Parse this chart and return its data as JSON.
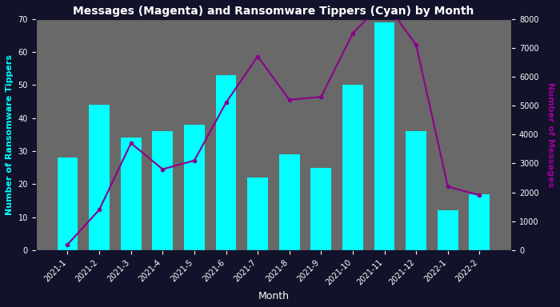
{
  "months": [
    "2021-1",
    "2021-2",
    "2021-3",
    "2021-4",
    "2021-5",
    "2021-6",
    "2021-7",
    "2021-8",
    "2021-9",
    "2021-10",
    "2021-11",
    "2021-12",
    "2022-1",
    "2022-2"
  ],
  "tippers": [
    28,
    44,
    34,
    36,
    38,
    53,
    22,
    29,
    25,
    50,
    69,
    36,
    12,
    17
  ],
  "messages": [
    200,
    1400,
    3700,
    2800,
    3100,
    5100,
    6700,
    5200,
    5300,
    7500,
    8600,
    7100,
    2200,
    1900
  ],
  "bar_color": "#00FFFF",
  "line_color": "#8B008B",
  "bg_color": "#696969",
  "outer_bg": "#12122a",
  "title": "Messages (Magenta) and Ransomware Tippers (Cyan) by Month",
  "title_color": "white",
  "xlabel": "Month",
  "ylabel_left": "Number of Ransomware Tippers",
  "ylabel_right": "Number of Messages",
  "ylabel_left_color": "#00FFFF",
  "ylabel_right_color": "#9b009b",
  "ylim_left": [
    0,
    70
  ],
  "ylim_right": [
    0,
    8000
  ],
  "tick_color": "white",
  "label_color": "white",
  "title_fontsize": 10,
  "ylabel_fontsize": 8,
  "xlabel_fontsize": 9,
  "tick_fontsize": 7
}
